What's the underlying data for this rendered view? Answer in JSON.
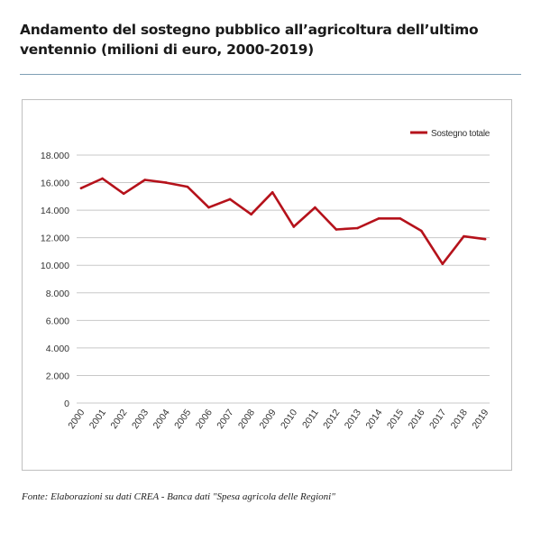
{
  "header": {
    "title": "Andamento del sostegno pubblico all’agricoltura dell’ultimo ventennio (milioni di euro, 2000-2019)"
  },
  "footer": {
    "source": "Fonte: Elaborazioni su dati CREA - Banca dati \"Spesa agricola delle Regioni\""
  },
  "colors": {
    "series": "#b5121b",
    "grid": "#c8c8c8",
    "axis": "#333333"
  },
  "chart_data": {
    "type": "line",
    "title": "",
    "xlabel": "",
    "ylabel": "",
    "x": [
      "2000",
      "2001",
      "2002",
      "2003",
      "2004",
      "2005",
      "2006",
      "2007",
      "2008",
      "2009",
      "2010",
      "2011",
      "2012",
      "2013",
      "2014",
      "2015",
      "2016",
      "2017",
      "2018",
      "2019"
    ],
    "series": [
      {
        "name": "Sostegno totale",
        "values": [
          15600,
          16300,
          15200,
          16200,
          16000,
          15700,
          14200,
          14800,
          13700,
          15300,
          12800,
          14200,
          12600,
          12700,
          13400,
          13400,
          12500,
          10100,
          12100,
          11900
        ]
      }
    ],
    "ylim": [
      0,
      18000
    ],
    "yticks": [
      "0",
      "2.000",
      "4.000",
      "6.000",
      "8.000",
      "10.000",
      "12.000",
      "14.000",
      "16.000",
      "18.000"
    ],
    "grid": true,
    "legend": "top-right"
  }
}
